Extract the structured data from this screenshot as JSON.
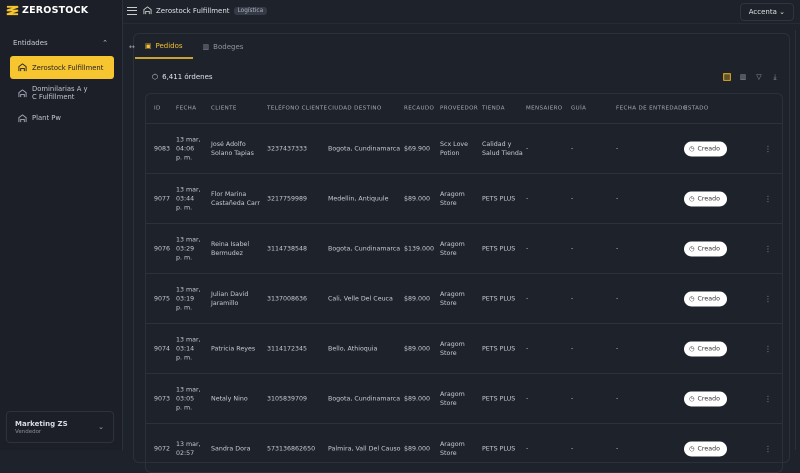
{
  "brand": {
    "name": "ZEROSTOCK",
    "accent": "#f7c530"
  },
  "sidebar": {
    "section": "Entidades",
    "items": [
      {
        "label": "Zerostock Fulfillment",
        "active": true
      },
      {
        "label": "Dominilarias A y C Fulfillment"
      },
      {
        "label": "Plant Pw"
      }
    ],
    "user": {
      "name": "Marketing ZS",
      "role": "Vendedor"
    }
  },
  "header": {
    "title": "Zerostock Fulfillment",
    "badge": "Logística",
    "account": "Accenta"
  },
  "tabs": [
    {
      "label": "Pedidos",
      "active": true
    },
    {
      "label": "Bodeges"
    }
  ],
  "orders": {
    "count": "6,411 órdenes",
    "columns": [
      "ID",
      "FECHA",
      "CLIENTE",
      "TELÉFONO CLIENTE",
      "CIUDAD DESTINO",
      "RECAUDO",
      "PROVEEDOR",
      "TIENDA",
      "MENSAIERO",
      "GUÍA",
      "FECHA DE ENTREDADO",
      "ESTADO"
    ],
    "rows": [
      {
        "id": "9083",
        "fecha": [
          "13 mar,",
          "04:06",
          "p. m."
        ],
        "cliente": "José Adolfo Solano Tapias",
        "tel": "3237437333",
        "ciudad": "Bogota, Cundinamarca",
        "recaudo": "$69.900",
        "proveedor": "Scx Love Potion",
        "tienda": "Calidad y Salud Tienda",
        "mensajero": "-",
        "guia": "-",
        "entrega": "-",
        "estado": "Creado"
      },
      {
        "id": "9077",
        "fecha": [
          "13 mar,",
          "03:44",
          "p. m."
        ],
        "cliente": "Flor Marina Castañeda Carr",
        "tel": "3217759989",
        "ciudad": "Medellin, Antiquule",
        "recaudo": "$89.000",
        "proveedor": "Aragom Store",
        "tienda": "PETS PLUS",
        "mensajero": "-",
        "guia": "-",
        "entrega": "-",
        "estado": "Creado"
      },
      {
        "id": "9076",
        "fecha": [
          "13 mar,",
          "03:29",
          "p. m."
        ],
        "cliente": "Reina Isabel Bermudez",
        "tel": "3114738548",
        "ciudad": "Bogota, Cundinamarca",
        "recaudo": "$139.000",
        "proveedor": "Aragom Store",
        "tienda": "PETS PLUS",
        "mensajero": "-",
        "guia": "-",
        "entrega": "-",
        "estado": "Creado"
      },
      {
        "id": "9075",
        "fecha": [
          "13 mar,",
          "03:19",
          "p. m."
        ],
        "cliente": "Julian David Jaramillo",
        "tel": "3137008636",
        "ciudad": "Cali, Velle Del Ceuca",
        "recaudo": "$89.000",
        "proveedor": "Aragom Store",
        "tienda": "PETS PLUS",
        "mensajero": "-",
        "guia": "-",
        "entrega": "-",
        "estado": "Creado"
      },
      {
        "id": "9074",
        "fecha": [
          "13 mar,",
          "03:14",
          "p. m."
        ],
        "cliente": "Patricia Reyes",
        "tel": "3114172345",
        "ciudad": "Bello, Athioquia",
        "recaudo": "$89.000",
        "proveedor": "Aragom Store",
        "tienda": "PETS PLUS",
        "mensajero": "-",
        "guia": "-",
        "entrega": "-",
        "estado": "Creado"
      },
      {
        "id": "9073",
        "fecha": [
          "13 mar,",
          "03:05",
          "p. m."
        ],
        "cliente": "Netaly Nino",
        "tel": "3105839709",
        "ciudad": "Bogota, Cundinamarca",
        "recaudo": "$89.000",
        "proveedor": "Aragom Store",
        "tienda": "PETS PLUS",
        "mensajero": "-",
        "guia": "-",
        "entrega": "-",
        "estado": "Creado"
      },
      {
        "id": "9072",
        "fecha": [
          "13 mar,",
          "02:57"
        ],
        "cliente": "Sandra Dora",
        "tel": "573136862650",
        "ciudad": "Palmira, Vall Del Causo",
        "recaudo": "$89.000",
        "proveedor": "Aragom Store",
        "tienda": "PETS PLUS",
        "mensajero": "-",
        "guia": "-",
        "entrega": "-",
        "estado": "Creado"
      }
    ]
  }
}
